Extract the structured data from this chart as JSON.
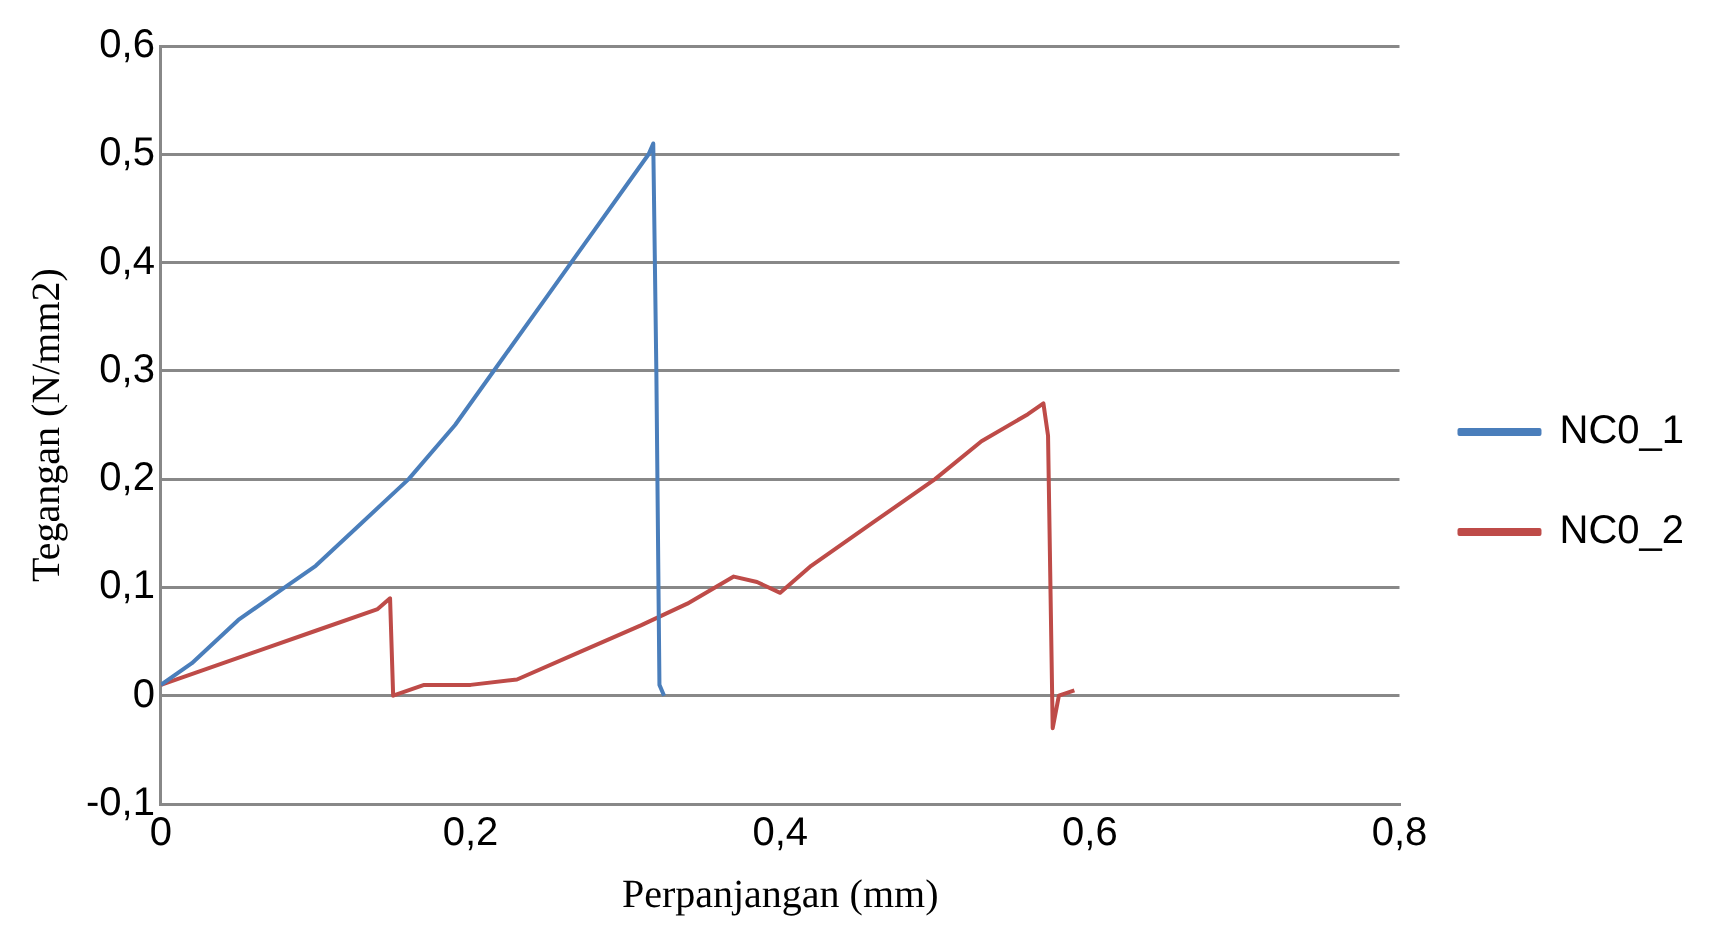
{
  "chart_data": {
    "type": "line",
    "xlabel": "Perpanjangan (mm)",
    "ylabel": "Tegangan (N/mm2)",
    "xlim": [
      0,
      0.8
    ],
    "xticks": [
      {
        "value": 0,
        "label": "0"
      },
      {
        "value": 0.2,
        "label": "0,2"
      },
      {
        "value": 0.4,
        "label": "0,4"
      },
      {
        "value": 0.6,
        "label": "0,6"
      },
      {
        "value": 0.8,
        "label": "0,8"
      }
    ],
    "ylim": [
      -0.1,
      0.6
    ],
    "yticks": [
      {
        "value": -0.1,
        "label": "-0,1"
      },
      {
        "value": 0,
        "label": "0"
      },
      {
        "value": 0.1,
        "label": "0,1"
      },
      {
        "value": 0.2,
        "label": "0,2"
      },
      {
        "value": 0.3,
        "label": "0,3"
      },
      {
        "value": 0.4,
        "label": "0,4"
      },
      {
        "value": 0.5,
        "label": "0,5"
      },
      {
        "value": 0.6,
        "label": "0,6"
      }
    ],
    "grid": "y",
    "legend": "right",
    "marker": "none",
    "line_style": "solid",
    "series": [
      {
        "name": "NC0_1",
        "color": "#4a7ebb",
        "x": [
          0,
          0.02,
          0.05,
          0.08,
          0.1,
          0.13,
          0.16,
          0.19,
          0.22,
          0.25,
          0.28,
          0.3,
          0.315,
          0.318,
          0.32,
          0.322,
          0.325
        ],
        "values": [
          0.01,
          0.03,
          0.07,
          0.1,
          0.12,
          0.16,
          0.2,
          0.25,
          0.31,
          0.37,
          0.43,
          0.47,
          0.5,
          0.51,
          0.3,
          0.01,
          0
        ]
      },
      {
        "name": "NC0_2",
        "color": "#be4b48",
        "x": [
          0,
          0.03,
          0.06,
          0.1,
          0.14,
          0.148,
          0.15,
          0.17,
          0.2,
          0.23,
          0.27,
          0.31,
          0.34,
          0.37,
          0.385,
          0.4,
          0.42,
          0.46,
          0.5,
          0.53,
          0.56,
          0.57,
          0.573,
          0.576,
          0.58,
          0.59
        ],
        "values": [
          0.01,
          0.025,
          0.04,
          0.06,
          0.08,
          0.09,
          0,
          0.01,
          0.01,
          0.015,
          0.04,
          0.065,
          0.085,
          0.11,
          0.105,
          0.095,
          0.12,
          0.16,
          0.2,
          0.235,
          0.26,
          0.27,
          0.24,
          -0.03,
          0,
          0.005
        ]
      }
    ]
  }
}
